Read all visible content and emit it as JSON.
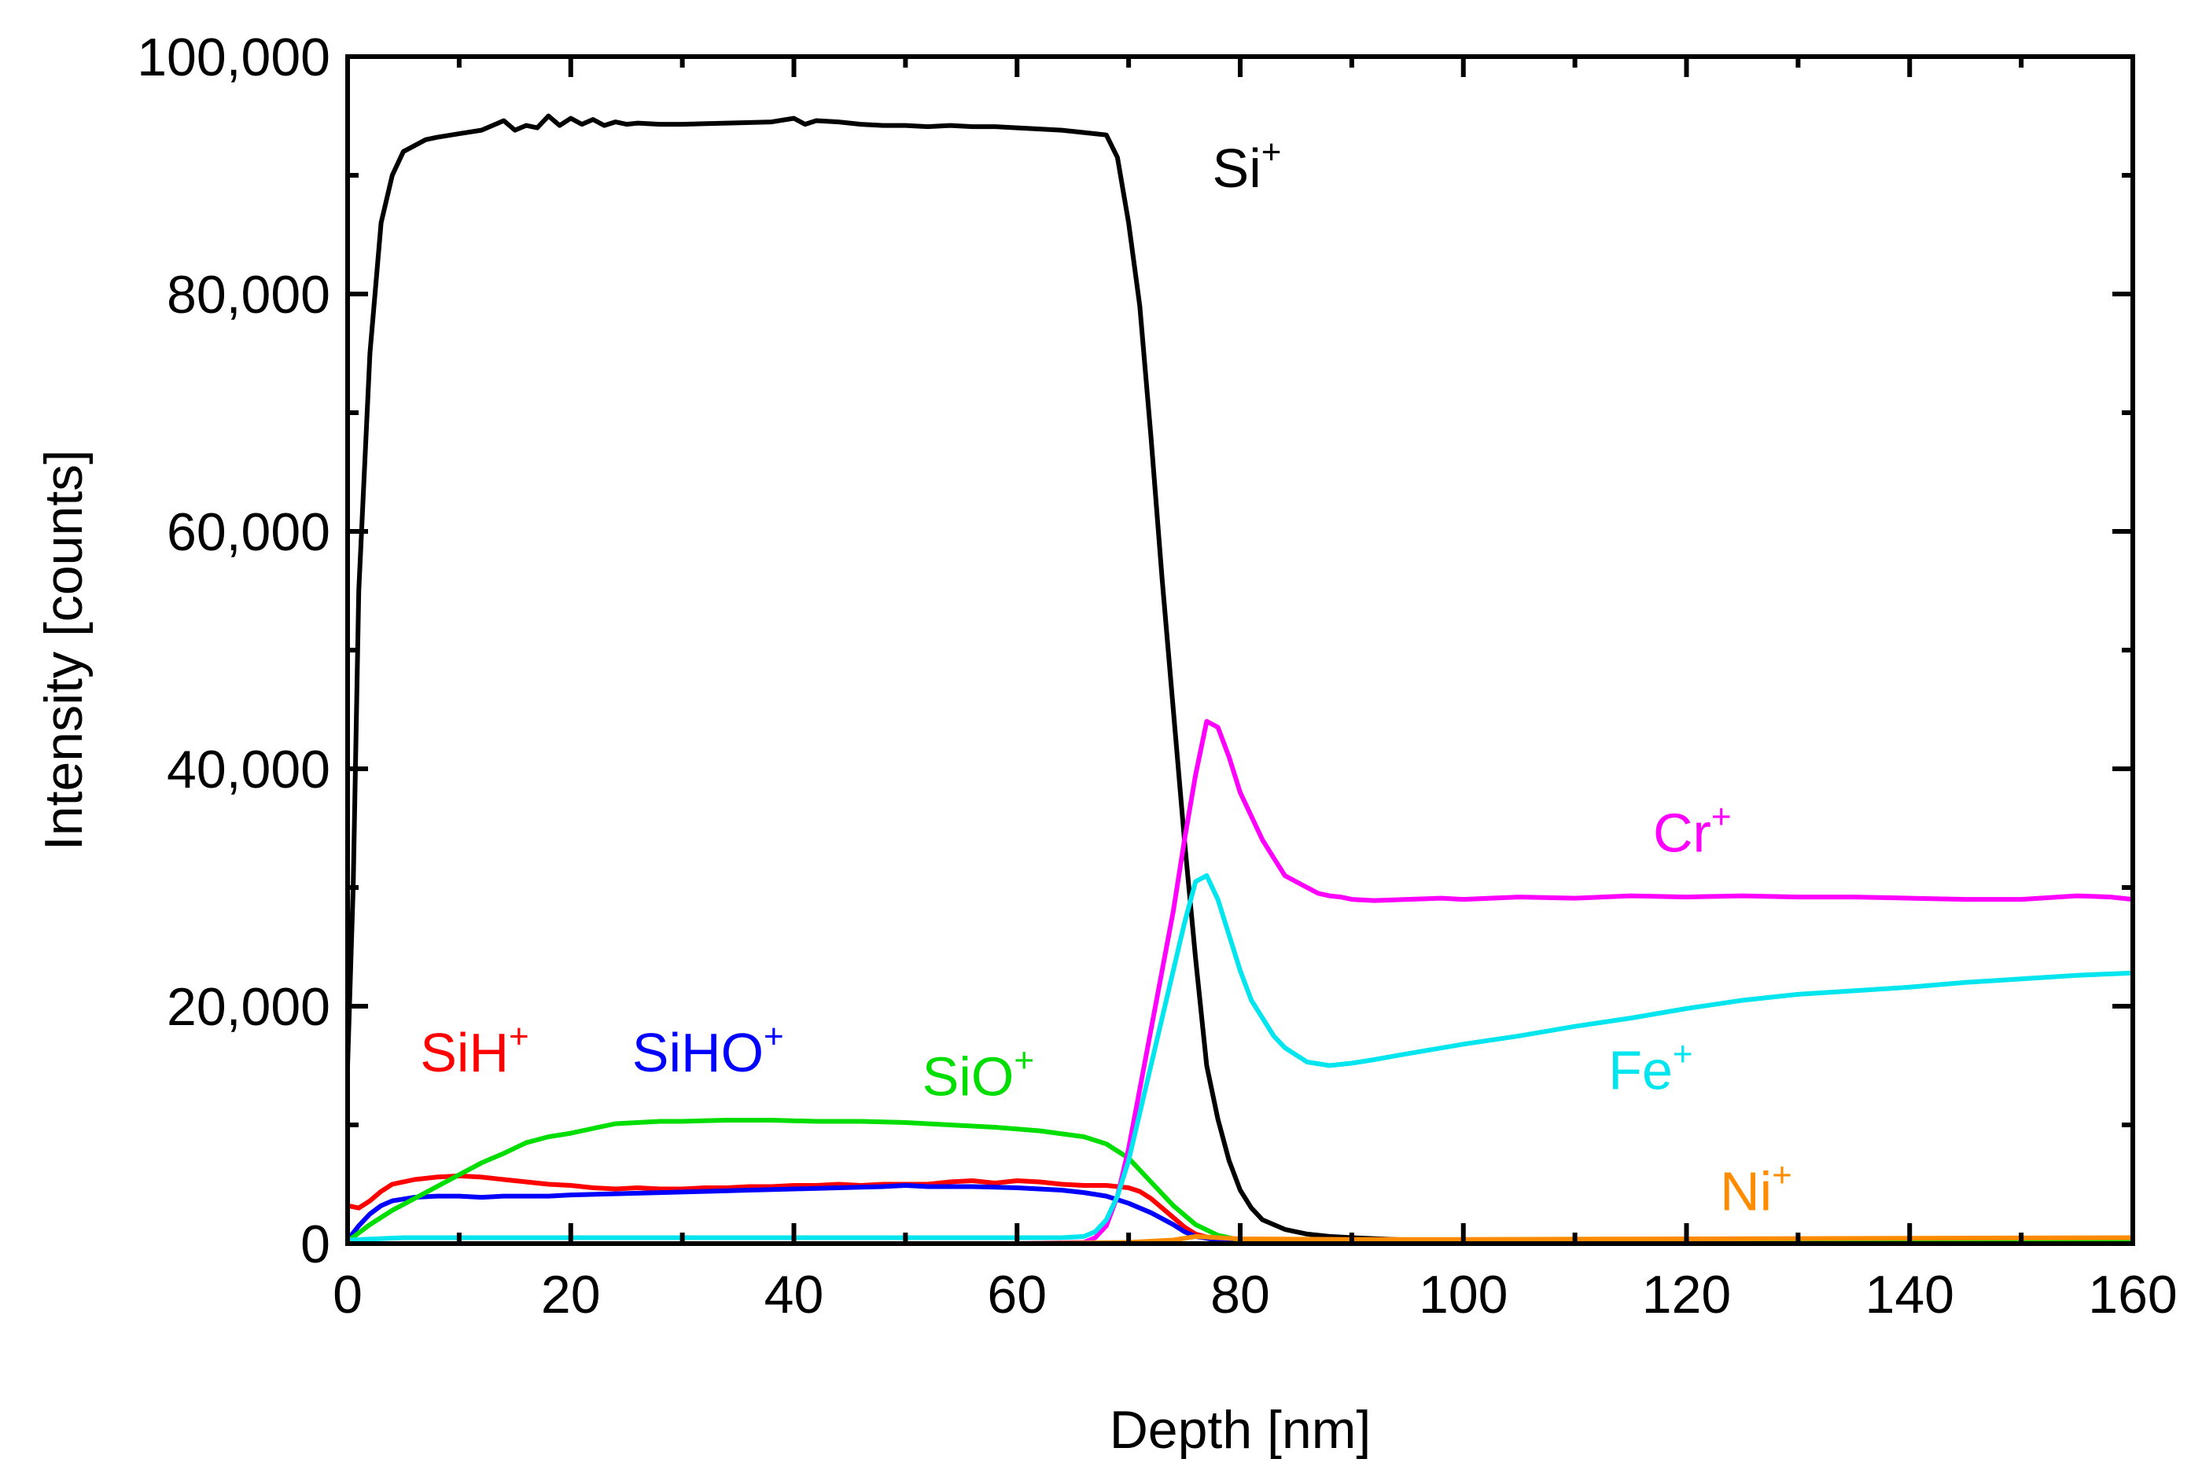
{
  "chart_data": {
    "type": "line",
    "title": "",
    "xlabel": "Depth [nm]",
    "ylabel": "Intensity [counts]",
    "xlim": [
      0,
      160
    ],
    "ylim": [
      0,
      100000
    ],
    "xticks": [
      0,
      20,
      40,
      60,
      80,
      100,
      120,
      140,
      160
    ],
    "yticks": [
      0,
      20000,
      40000,
      60000,
      80000,
      100000
    ],
    "x_tick_labels": [
      "0",
      "20",
      "40",
      "60",
      "80",
      "100",
      "120",
      "140",
      "160"
    ],
    "y_tick_labels": [
      "0",
      "20,000",
      "40,000",
      "60,000",
      "80,000",
      "100,000"
    ],
    "grid": false,
    "series": [
      {
        "name": "Si",
        "label_sup": "+",
        "color": "#000000",
        "x": [
          0,
          0.5,
          1,
          2,
          3,
          4,
          5,
          6,
          7,
          8,
          10,
          12,
          14,
          15,
          16,
          17,
          18,
          19,
          20,
          21,
          22,
          23,
          24,
          25,
          26,
          28,
          30,
          34,
          38,
          40,
          41,
          42,
          44,
          46,
          48,
          50,
          52,
          54,
          56,
          58,
          60,
          62,
          64,
          66,
          68,
          69,
          70,
          71,
          72,
          73,
          74,
          75,
          76,
          77,
          78,
          79,
          80,
          81,
          82,
          84,
          86,
          88,
          90,
          95,
          100,
          110,
          120,
          130,
          140,
          150,
          160
        ],
        "y": [
          15000,
          30000,
          55000,
          75000,
          86000,
          90000,
          92000,
          92500,
          93000,
          93200,
          93500,
          93800,
          94600,
          93800,
          94200,
          94000,
          95000,
          94200,
          94800,
          94300,
          94700,
          94200,
          94500,
          94300,
          94400,
          94300,
          94300,
          94400,
          94500,
          94800,
          94300,
          94600,
          94500,
          94300,
          94200,
          94200,
          94100,
          94200,
          94100,
          94100,
          94000,
          93900,
          93800,
          93600,
          93400,
          91500,
          86000,
          79000,
          68000,
          56000,
          45000,
          34000,
          24000,
          15000,
          10500,
          7000,
          4500,
          3000,
          2000,
          1200,
          800,
          600,
          500,
          300,
          200,
          150,
          120,
          100,
          100,
          100,
          100
        ]
      },
      {
        "name": "SiH",
        "label_sup": "+",
        "color": "#ff0000",
        "x": [
          0,
          1,
          2,
          3,
          4,
          6,
          8,
          10,
          12,
          14,
          16,
          18,
          20,
          22,
          24,
          26,
          28,
          30,
          32,
          34,
          36,
          38,
          40,
          42,
          44,
          46,
          48,
          50,
          52,
          54,
          56,
          58,
          60,
          62,
          64,
          66,
          68,
          70,
          71,
          72,
          73,
          74,
          75,
          76,
          78,
          80,
          85,
          90,
          100,
          120,
          140,
          160
        ],
        "y": [
          3200,
          3000,
          3600,
          4400,
          5000,
          5400,
          5600,
          5700,
          5600,
          5400,
          5200,
          5000,
          4900,
          4700,
          4600,
          4700,
          4600,
          4600,
          4700,
          4700,
          4800,
          4800,
          4900,
          4900,
          5000,
          4900,
          5000,
          5000,
          5000,
          5200,
          5300,
          5100,
          5300,
          5200,
          5000,
          4900,
          4900,
          4700,
          4400,
          3800,
          3000,
          2200,
          1400,
          800,
          300,
          150,
          100,
          100,
          100,
          100,
          100,
          100
        ]
      },
      {
        "name": "SiHO",
        "label_sup": "+",
        "color": "#0000ff",
        "x": [
          0,
          1,
          2,
          3,
          4,
          6,
          8,
          10,
          12,
          14,
          16,
          18,
          20,
          24,
          28,
          32,
          36,
          40,
          44,
          48,
          50,
          52,
          56,
          60,
          62,
          64,
          66,
          68,
          70,
          72,
          74,
          75,
          76,
          78,
          80,
          85,
          90,
          100,
          120,
          140,
          160
        ],
        "y": [
          300,
          1500,
          2500,
          3200,
          3600,
          3900,
          4000,
          4000,
          3900,
          4000,
          4000,
          4000,
          4100,
          4200,
          4300,
          4400,
          4500,
          4600,
          4700,
          4800,
          4900,
          4800,
          4800,
          4700,
          4600,
          4500,
          4300,
          4000,
          3400,
          2600,
          1600,
          1000,
          600,
          300,
          150,
          100,
          100,
          80,
          80,
          80,
          80
        ]
      },
      {
        "name": "SiO",
        "label_sup": "+",
        "color": "#00dd00",
        "x": [
          0,
          2,
          4,
          6,
          8,
          10,
          12,
          14,
          16,
          18,
          20,
          22,
          24,
          26,
          28,
          30,
          34,
          38,
          42,
          46,
          50,
          54,
          58,
          62,
          66,
          68,
          70,
          72,
          74,
          76,
          78,
          80,
          85,
          90,
          100,
          120,
          140,
          160
        ],
        "y": [
          200,
          1600,
          2800,
          3800,
          4800,
          5800,
          6800,
          7600,
          8500,
          9000,
          9300,
          9700,
          10100,
          10200,
          10300,
          10300,
          10400,
          10400,
          10300,
          10300,
          10200,
          10000,
          9800,
          9500,
          9000,
          8400,
          7200,
          5200,
          3200,
          1600,
          700,
          300,
          150,
          100,
          100,
          100,
          100,
          100
        ]
      },
      {
        "name": "Cr",
        "label_sup": "+",
        "color": "#ff00ff",
        "x": [
          0,
          20,
          40,
          60,
          66,
          67,
          68,
          69,
          70,
          71,
          72,
          73,
          74,
          75,
          76,
          77,
          78,
          79,
          80,
          81,
          82,
          83,
          84,
          85,
          86,
          87,
          88,
          89,
          90,
          92,
          95,
          98,
          100,
          105,
          110,
          115,
          120,
          125,
          130,
          135,
          140,
          145,
          150,
          155,
          158,
          160
        ],
        "y": [
          0,
          0,
          0,
          0,
          100,
          500,
          1500,
          4000,
          8000,
          13000,
          18000,
          23000,
          28000,
          34000,
          39500,
          44000,
          43500,
          41000,
          38000,
          36000,
          34000,
          32500,
          31000,
          30500,
          30000,
          29500,
          29300,
          29200,
          29000,
          28900,
          29000,
          29100,
          29000,
          29200,
          29100,
          29300,
          29200,
          29300,
          29200,
          29200,
          29100,
          29000,
          29000,
          29300,
          29200,
          29000
        ]
      },
      {
        "name": "Fe",
        "label_sup": "+",
        "color": "#00e5ee",
        "x": [
          0,
          5,
          10,
          20,
          30,
          40,
          50,
          60,
          64,
          66,
          67,
          68,
          69,
          70,
          71,
          72,
          73,
          74,
          75,
          76,
          77,
          78,
          79,
          80,
          81,
          82,
          83,
          84,
          86,
          88,
          90,
          92,
          95,
          100,
          105,
          110,
          115,
          120,
          125,
          130,
          135,
          140,
          145,
          150,
          155,
          160
        ],
        "y": [
          300,
          500,
          500,
          500,
          500,
          500,
          500,
          500,
          500,
          600,
          1000,
          2000,
          4000,
          7000,
          11000,
          15000,
          19000,
          23000,
          27000,
          30500,
          31000,
          29000,
          26000,
          23000,
          20500,
          19000,
          17500,
          16500,
          15300,
          15000,
          15200,
          15500,
          16000,
          16800,
          17500,
          18300,
          19000,
          19800,
          20500,
          21000,
          21300,
          21600,
          22000,
          22300,
          22600,
          22800
        ]
      },
      {
        "name": "Ni",
        "label_sup": "+",
        "color": "#ff8c00",
        "x": [
          0,
          20,
          40,
          60,
          70,
          74,
          76,
          78,
          80,
          90,
          100,
          120,
          140,
          160
        ],
        "y": [
          0,
          0,
          0,
          0,
          100,
          300,
          600,
          500,
          400,
          350,
          350,
          400,
          450,
          500
        ]
      }
    ],
    "labels": [
      {
        "series": "Si",
        "text": "Si",
        "sup": "+",
        "x": 77.5,
        "y": 89000
      },
      {
        "series": "SiH",
        "text": "SiH",
        "sup": "+",
        "x": 6.5,
        "y": 14500
      },
      {
        "series": "SiHO",
        "text": "SiHO",
        "sup": "+",
        "x": 25.5,
        "y": 14500
      },
      {
        "series": "SiO",
        "text": "SiO",
        "sup": "+",
        "x": 51.5,
        "y": 12500
      },
      {
        "series": "Cr",
        "text": "Cr",
        "sup": "+",
        "x": 117,
        "y": 33000
      },
      {
        "series": "Fe",
        "text": "Fe",
        "sup": "+",
        "x": 113,
        "y": 13000
      },
      {
        "series": "Ni",
        "text": "Ni",
        "sup": "+",
        "x": 123,
        "y": 2800
      }
    ]
  }
}
